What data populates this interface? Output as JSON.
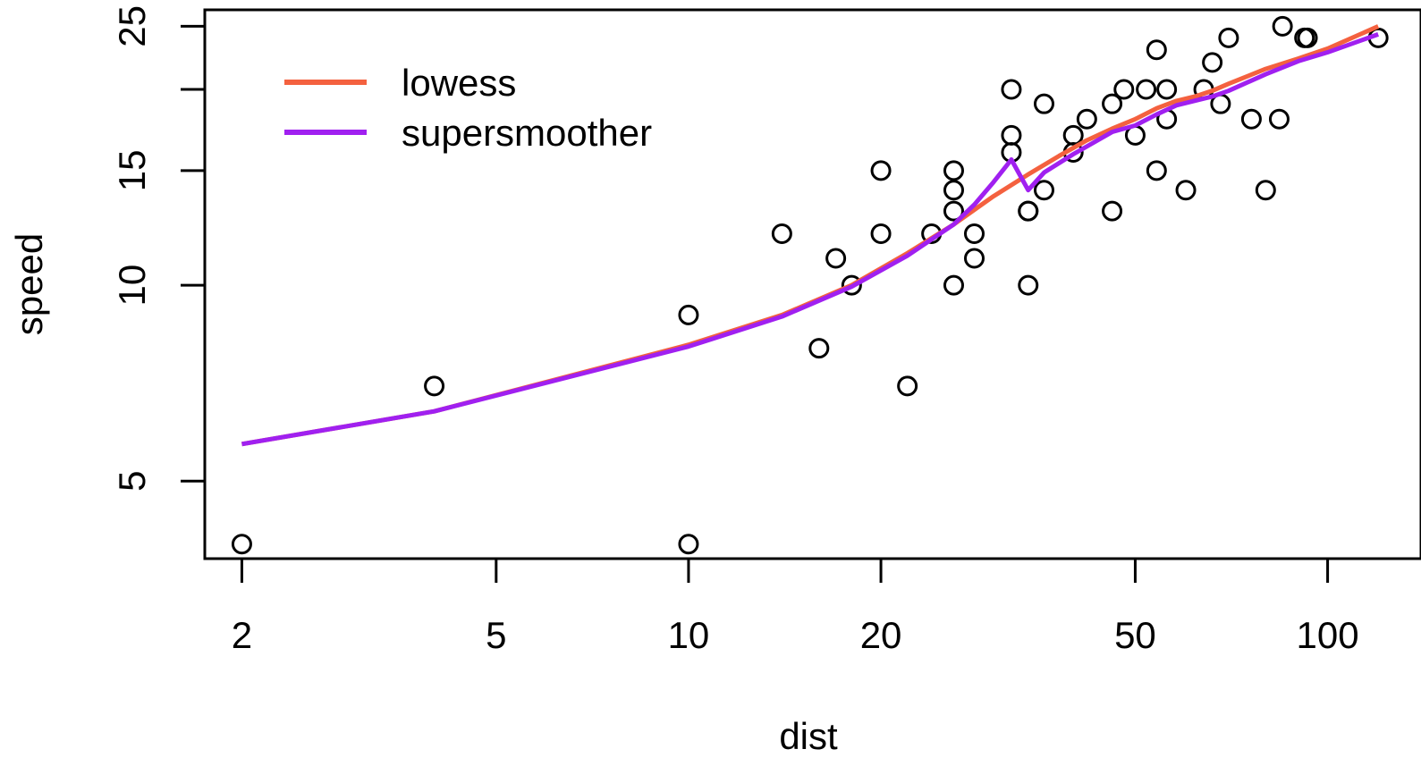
{
  "chart_data": {
    "type": "scatter",
    "title": "",
    "xlabel": "dist",
    "ylabel": "speed",
    "x_scale": "log",
    "y_scale": "log",
    "xlim": [
      1.75,
      140
    ],
    "ylim": [
      3.8,
      26.5
    ],
    "x_ticks": [
      2,
      5,
      10,
      20,
      50,
      100
    ],
    "x_tick_labels": [
      "2",
      "5",
      "10",
      "20",
      "50",
      "100"
    ],
    "y_ticks": [
      5,
      10,
      15,
      20,
      25
    ],
    "y_tick_labels": [
      "5",
      "10",
      "15",
      "",
      "25"
    ],
    "grid": false,
    "legend": {
      "position": "top-left",
      "entries": [
        {
          "label": "lowess",
          "color": "#f4613f"
        },
        {
          "label": "supersmoother",
          "color": "#a020f0"
        }
      ]
    },
    "points": [
      {
        "x": 2,
        "y": 4
      },
      {
        "x": 10,
        "y": 4
      },
      {
        "x": 4,
        "y": 7
      },
      {
        "x": 22,
        "y": 7
      },
      {
        "x": 16,
        "y": 8
      },
      {
        "x": 10,
        "y": 9
      },
      {
        "x": 18,
        "y": 10
      },
      {
        "x": 26,
        "y": 10
      },
      {
        "x": 34,
        "y": 10
      },
      {
        "x": 17,
        "y": 11
      },
      {
        "x": 28,
        "y": 11
      },
      {
        "x": 14,
        "y": 12
      },
      {
        "x": 20,
        "y": 12
      },
      {
        "x": 24,
        "y": 12
      },
      {
        "x": 28,
        "y": 12
      },
      {
        "x": 26,
        "y": 13
      },
      {
        "x": 34,
        "y": 13
      },
      {
        "x": 34,
        "y": 13
      },
      {
        "x": 46,
        "y": 13
      },
      {
        "x": 26,
        "y": 14
      },
      {
        "x": 36,
        "y": 14
      },
      {
        "x": 60,
        "y": 14
      },
      {
        "x": 80,
        "y": 14
      },
      {
        "x": 20,
        "y": 15
      },
      {
        "x": 26,
        "y": 15
      },
      {
        "x": 54,
        "y": 15
      },
      {
        "x": 32,
        "y": 16
      },
      {
        "x": 40,
        "y": 16
      },
      {
        "x": 32,
        "y": 17
      },
      {
        "x": 40,
        "y": 17
      },
      {
        "x": 50,
        "y": 17
      },
      {
        "x": 42,
        "y": 18
      },
      {
        "x": 56,
        "y": 18
      },
      {
        "x": 76,
        "y": 18
      },
      {
        "x": 84,
        "y": 18
      },
      {
        "x": 36,
        "y": 19
      },
      {
        "x": 46,
        "y": 19
      },
      {
        "x": 68,
        "y": 19
      },
      {
        "x": 32,
        "y": 20
      },
      {
        "x": 48,
        "y": 20
      },
      {
        "x": 52,
        "y": 20
      },
      {
        "x": 56,
        "y": 20
      },
      {
        "x": 64,
        "y": 20
      },
      {
        "x": 66,
        "y": 22
      },
      {
        "x": 54,
        "y": 23
      },
      {
        "x": 70,
        "y": 24
      },
      {
        "x": 92,
        "y": 24
      },
      {
        "x": 93,
        "y": 24
      },
      {
        "x": 120,
        "y": 24
      },
      {
        "x": 85,
        "y": 25
      }
    ],
    "series": [
      {
        "name": "lowess",
        "color": "#f4613f",
        "x": [
          2,
          4,
          10,
          14,
          18,
          22,
          26,
          30,
          34,
          38,
          42,
          46,
          50,
          54,
          58,
          62,
          66,
          70,
          80,
          90,
          100,
          120
        ],
        "y": [
          5.7,
          6.4,
          8.1,
          9.0,
          10.0,
          11.2,
          12.4,
          13.7,
          14.8,
          15.8,
          16.7,
          17.4,
          18.0,
          18.7,
          19.2,
          19.5,
          19.9,
          20.4,
          21.5,
          22.3,
          23.1,
          25.0
        ]
      },
      {
        "name": "supersmoother",
        "color": "#a020f0",
        "x": [
          2,
          4,
          10,
          14,
          18,
          22,
          26,
          28,
          30,
          32,
          34,
          36,
          40,
          46,
          50,
          54,
          58,
          66,
          70,
          80,
          90,
          100,
          120
        ],
        "y": [
          5.7,
          6.4,
          8.05,
          8.95,
          9.95,
          11.1,
          12.4,
          13.3,
          14.4,
          15.6,
          14.0,
          14.9,
          15.9,
          17.2,
          17.6,
          18.3,
          18.9,
          19.5,
          19.9,
          21.1,
          22.1,
          22.8,
          24.3
        ]
      }
    ]
  }
}
